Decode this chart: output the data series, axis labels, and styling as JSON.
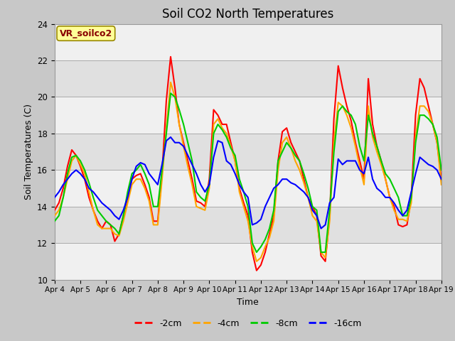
{
  "title": "Soil CO2 North Temperatures",
  "xlabel": "Time",
  "ylabel": "Soil Temperatures (C)",
  "ylim": [
    10,
    24
  ],
  "xlim": [
    0,
    15
  ],
  "xtick_labels": [
    "Apr 4",
    "Apr 5",
    "Apr 6",
    "Apr 7",
    "Apr 8",
    "Apr 9",
    "Apr 10",
    "Apr 11",
    "Apr 12",
    "Apr 13",
    "Apr 14",
    "Apr 15",
    "Apr 16",
    "Apr 17",
    "Apr 18",
    "Apr 19"
  ],
  "xtick_positions": [
    0,
    1,
    2,
    3,
    4,
    5,
    6,
    7,
    8,
    9,
    10,
    11,
    12,
    13,
    14,
    15
  ],
  "ytick_labels": [
    "10",
    "12",
    "14",
    "16",
    "18",
    "20",
    "22",
    "24"
  ],
  "ytick_positions": [
    10,
    12,
    14,
    16,
    18,
    20,
    22,
    24
  ],
  "legend_label": "VR_soilco2",
  "series_labels": [
    "-2cm",
    "-4cm",
    "-8cm",
    "-16cm"
  ],
  "series_colors": [
    "#ff0000",
    "#ffa500",
    "#00cc00",
    "#0000ff"
  ],
  "line_width": 1.5,
  "fig_bg_color": "#c8c8c8",
  "plot_bg_color": "#e0e0e0",
  "annotation_box_color": "#ffff99",
  "annotation_text_color": "#880000",
  "x": [
    0.0,
    0.167,
    0.333,
    0.5,
    0.667,
    0.833,
    1.0,
    1.167,
    1.333,
    1.5,
    1.667,
    1.833,
    2.0,
    2.167,
    2.333,
    2.5,
    2.667,
    2.833,
    3.0,
    3.167,
    3.333,
    3.5,
    3.667,
    3.833,
    4.0,
    4.167,
    4.333,
    4.5,
    4.667,
    4.833,
    5.0,
    5.167,
    5.333,
    5.5,
    5.667,
    5.833,
    6.0,
    6.167,
    6.333,
    6.5,
    6.667,
    6.833,
    7.0,
    7.167,
    7.333,
    7.5,
    7.667,
    7.833,
    8.0,
    8.167,
    8.333,
    8.5,
    8.667,
    8.833,
    9.0,
    9.167,
    9.333,
    9.5,
    9.667,
    9.833,
    10.0,
    10.167,
    10.333,
    10.5,
    10.667,
    10.833,
    11.0,
    11.167,
    11.333,
    11.5,
    11.667,
    11.833,
    12.0,
    12.167,
    12.333,
    12.5,
    12.667,
    12.833,
    13.0,
    13.167,
    13.333,
    13.5,
    13.667,
    13.833,
    14.0,
    14.167,
    14.333,
    14.5,
    14.667,
    14.833,
    15.0
  ],
  "y_2cm": [
    13.8,
    14.2,
    15.0,
    16.2,
    17.1,
    16.8,
    16.2,
    15.5,
    14.5,
    13.8,
    13.2,
    12.8,
    13.2,
    13.0,
    12.1,
    12.5,
    13.5,
    14.5,
    15.5,
    15.7,
    15.8,
    15.2,
    14.5,
    13.2,
    13.2,
    15.8,
    19.8,
    22.2,
    20.5,
    18.5,
    17.5,
    16.5,
    15.5,
    14.3,
    14.2,
    14.0,
    15.5,
    19.3,
    19.0,
    18.5,
    18.5,
    17.5,
    16.5,
    15.0,
    14.2,
    13.5,
    11.5,
    10.5,
    10.8,
    11.5,
    12.5,
    13.5,
    16.5,
    18.1,
    18.3,
    17.5,
    17.0,
    16.5,
    15.5,
    14.5,
    14.0,
    13.5,
    11.3,
    11.0,
    13.5,
    18.8,
    21.7,
    20.5,
    19.5,
    18.7,
    17.5,
    16.5,
    15.5,
    21.0,
    18.5,
    17.3,
    16.5,
    15.5,
    14.5,
    14.0,
    13.0,
    12.9,
    13.0,
    14.5,
    19.0,
    21.0,
    20.5,
    19.5,
    18.5,
    17.5,
    15.5
  ],
  "y_4cm": [
    13.5,
    13.8,
    14.5,
    15.5,
    16.5,
    16.8,
    16.3,
    15.8,
    14.8,
    13.8,
    13.0,
    12.8,
    12.8,
    12.8,
    12.5,
    12.4,
    13.2,
    14.2,
    15.2,
    15.5,
    15.5,
    15.0,
    14.3,
    13.0,
    13.0,
    15.5,
    18.3,
    20.8,
    20.0,
    18.5,
    17.3,
    16.2,
    15.2,
    14.0,
    13.9,
    13.8,
    15.0,
    18.5,
    18.8,
    18.3,
    18.0,
    17.3,
    16.5,
    14.8,
    14.0,
    13.2,
    11.8,
    11.0,
    11.2,
    11.8,
    12.3,
    13.2,
    16.0,
    17.5,
    17.8,
    17.2,
    16.5,
    16.0,
    15.3,
    14.5,
    13.5,
    13.2,
    11.5,
    11.2,
    13.2,
    17.5,
    19.7,
    19.5,
    19.0,
    18.3,
    17.3,
    16.2,
    15.2,
    19.5,
    17.8,
    17.0,
    16.3,
    15.5,
    14.5,
    13.8,
    13.3,
    13.3,
    13.2,
    14.2,
    17.8,
    19.5,
    19.5,
    19.2,
    18.5,
    17.5,
    15.2
  ],
  "y_8cm": [
    13.2,
    13.5,
    14.5,
    15.8,
    16.7,
    16.8,
    16.5,
    16.0,
    15.3,
    14.5,
    13.8,
    13.5,
    13.2,
    13.0,
    12.8,
    12.5,
    13.5,
    14.8,
    15.8,
    16.0,
    16.3,
    15.8,
    15.2,
    14.0,
    14.0,
    16.0,
    18.0,
    20.2,
    20.0,
    19.3,
    18.5,
    17.5,
    16.5,
    14.8,
    14.5,
    14.3,
    15.2,
    18.0,
    18.5,
    18.2,
    17.8,
    17.2,
    16.8,
    15.5,
    14.8,
    14.0,
    12.0,
    11.5,
    11.8,
    12.2,
    12.8,
    13.8,
    16.5,
    17.0,
    17.5,
    17.2,
    16.8,
    16.5,
    15.8,
    15.0,
    14.0,
    13.8,
    11.5,
    11.5,
    13.8,
    17.0,
    19.2,
    19.5,
    19.2,
    19.0,
    18.5,
    17.3,
    16.5,
    19.0,
    18.0,
    17.3,
    16.5,
    15.8,
    15.5,
    15.0,
    14.5,
    13.5,
    13.5,
    14.5,
    17.5,
    19.0,
    19.0,
    18.8,
    18.5,
    17.8,
    16.0
  ],
  "y_16cm": [
    14.5,
    14.8,
    15.2,
    15.5,
    15.8,
    16.0,
    15.8,
    15.5,
    15.0,
    14.8,
    14.5,
    14.2,
    14.0,
    13.8,
    13.5,
    13.3,
    13.8,
    14.5,
    15.5,
    16.2,
    16.4,
    16.3,
    15.8,
    15.5,
    15.2,
    16.3,
    17.6,
    17.8,
    17.5,
    17.5,
    17.3,
    16.8,
    16.3,
    15.8,
    15.2,
    14.8,
    15.2,
    16.7,
    17.6,
    17.5,
    16.5,
    16.3,
    15.8,
    15.2,
    14.8,
    14.5,
    13.0,
    13.1,
    13.3,
    14.0,
    14.5,
    15.0,
    15.2,
    15.5,
    15.5,
    15.3,
    15.2,
    15.0,
    14.8,
    14.5,
    13.8,
    13.5,
    12.8,
    13.0,
    14.2,
    14.5,
    16.6,
    16.3,
    16.5,
    16.5,
    16.5,
    16.0,
    15.8,
    16.7,
    15.5,
    15.0,
    14.8,
    14.5,
    14.5,
    14.2,
    13.8,
    13.5,
    13.8,
    14.8,
    15.8,
    16.7,
    16.5,
    16.3,
    16.2,
    16.0,
    15.5
  ]
}
